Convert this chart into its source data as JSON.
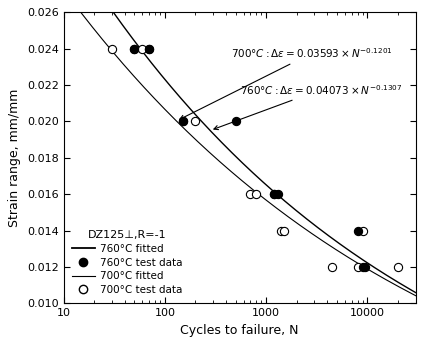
{
  "title": "",
  "xlabel": "Cycles to failure, N",
  "ylabel": "Strain range, mm/mm",
  "xlim": [
    10,
    30000
  ],
  "ylim": [
    0.01,
    0.026
  ],
  "yticks": [
    0.01,
    0.012,
    0.014,
    0.016,
    0.018,
    0.02,
    0.022,
    0.024,
    0.026
  ],
  "xticks": [
    10,
    100,
    1000,
    10000
  ],
  "data_760_x": [
    50,
    70,
    70,
    150,
    500,
    1200,
    1300,
    8000,
    9000,
    9500
  ],
  "data_760_y": [
    0.024,
    0.024,
    0.024,
    0.02,
    0.02,
    0.016,
    0.016,
    0.014,
    0.012,
    0.012
  ],
  "data_700_x": [
    30,
    50,
    60,
    150,
    200,
    700,
    800,
    1200,
    1400,
    1500,
    4500,
    8000,
    9000,
    20000
  ],
  "data_700_y": [
    0.024,
    0.024,
    0.024,
    0.02,
    0.02,
    0.016,
    0.016,
    0.016,
    0.014,
    0.014,
    0.012,
    0.012,
    0.014,
    0.012
  ],
  "fit_760_coeff": 0.04073,
  "fit_760_exp": -0.1307,
  "fit_700_coeff": 0.03593,
  "fit_700_exp": -0.1201,
  "legend_title": "DZ125⊥,R=-1",
  "background_color": "#ffffff",
  "line_color": "#000000",
  "marker_760_color": "#000000",
  "marker_700_color": "#ffffff",
  "marker_edgecolor": "#000000"
}
